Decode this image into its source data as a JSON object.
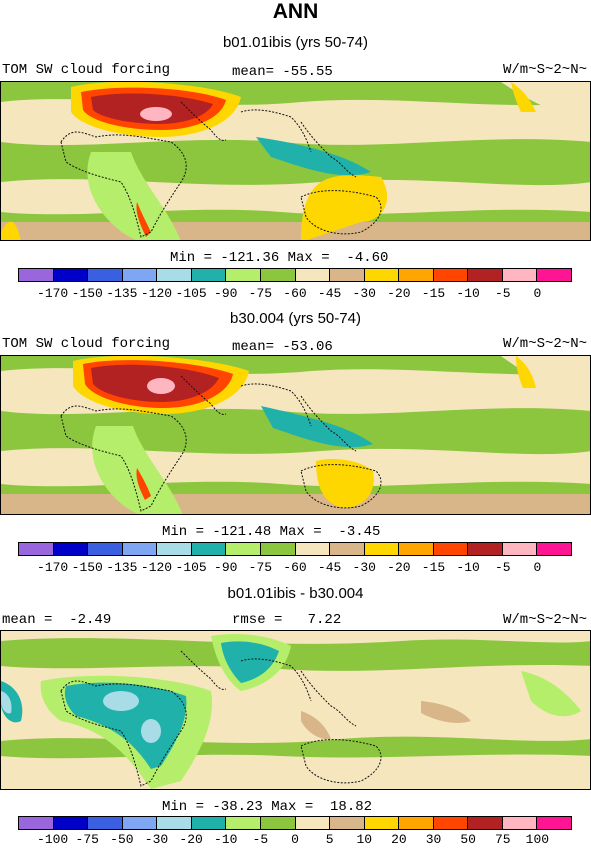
{
  "title": "ANN",
  "panels": [
    {
      "title": "b01.01ibis (yrs 50-74)",
      "left_label": "TOM SW cloud forcing",
      "center_label": "mean= -55.55",
      "right_label": "W/m~S~2~N~",
      "minmax": "Min = -121.36 Max =  -4.60",
      "levels": [
        "-170",
        "-150",
        "-135",
        "-120",
        "-105",
        "-90",
        "-75",
        "-60",
        "-45",
        "-30",
        "-20",
        "-15",
        "-10",
        "-5",
        "0"
      ]
    },
    {
      "title": "b30.004 (yrs 50-74)",
      "left_label": "TOM SW cloud forcing",
      "center_label": "mean= -53.06",
      "right_label": "W/m~S~2~N~",
      "minmax": "Min = -121.48 Max =  -3.45",
      "levels": [
        "-170",
        "-150",
        "-135",
        "-120",
        "-105",
        "-90",
        "-75",
        "-60",
        "-45",
        "-30",
        "-20",
        "-15",
        "-10",
        "-5",
        "0"
      ]
    },
    {
      "title": "b01.01ibis - b30.004",
      "left_label": "mean =  -2.49",
      "center_label": "rmse =   7.22",
      "right_label": "W/m~S~2~N~",
      "minmax": "Min = -38.23 Max =  18.82",
      "levels": [
        "-100",
        "-75",
        "-50",
        "-30",
        "-20",
        "-10",
        "-5",
        "0",
        "5",
        "10",
        "20",
        "30",
        "50",
        "75",
        "100"
      ]
    }
  ],
  "colorbar_colors": [
    "#9966dd",
    "#0000c8",
    "#3a5fe0",
    "#7fa6f2",
    "#a8dce6",
    "#20b2aa",
    "#b5ee6a",
    "#8cc63f",
    "#f5e6bd",
    "#d8b68a",
    "#ffd700",
    "#ffa500",
    "#ff4500",
    "#b22222",
    "#ffb6c1",
    "#ff1493"
  ]
}
